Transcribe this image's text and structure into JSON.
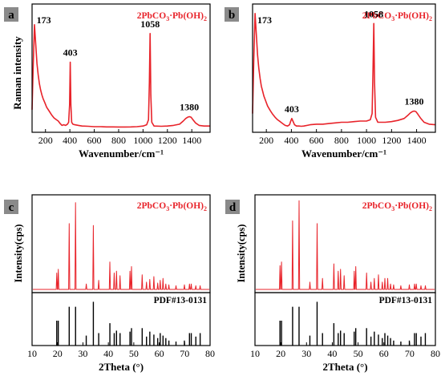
{
  "chart_data": [
    {
      "type": "line",
      "panel_label": "a",
      "title": "2PbCO3·Pb(OH)2",
      "xlabel": "Wavenumber/cm⁻¹",
      "ylabel": "Raman intensity",
      "xlim": [
        90,
        1550
      ],
      "xticks": [
        200,
        400,
        600,
        800,
        1000,
        1200,
        1400
      ],
      "series": [
        {
          "color": "#e8232a",
          "x": [
            90,
            100,
            110,
            120,
            130,
            140,
            150,
            160,
            170,
            180,
            195,
            210,
            230,
            250,
            270,
            290,
            305,
            320,
            335,
            350,
            365,
            380,
            390,
            398,
            403,
            408,
            415,
            425,
            440,
            470,
            500,
            550,
            600,
            650,
            700,
            750,
            800,
            850,
            900,
            950,
            1000,
            1030,
            1045,
            1052,
            1058,
            1064,
            1072,
            1090,
            1150,
            1200,
            1250,
            1300,
            1330,
            1350,
            1365,
            1380,
            1395,
            1410,
            1430,
            1460,
            1500,
            1550
          ],
          "y": [
            0.18,
            0.55,
            0.86,
            0.7,
            0.55,
            0.46,
            0.39,
            0.34,
            0.3,
            0.27,
            0.235,
            0.2,
            0.17,
            0.14,
            0.115,
            0.1,
            0.09,
            0.07,
            0.055,
            0.06,
            0.055,
            0.065,
            0.08,
            0.22,
            0.56,
            0.22,
            0.08,
            0.065,
            0.06,
            0.055,
            0.05,
            0.048,
            0.045,
            0.045,
            0.043,
            0.043,
            0.042,
            0.042,
            0.043,
            0.045,
            0.05,
            0.06,
            0.1,
            0.4,
            0.79,
            0.3,
            0.08,
            0.05,
            0.048,
            0.05,
            0.055,
            0.065,
            0.09,
            0.11,
            0.12,
            0.125,
            0.12,
            0.1,
            0.075,
            0.055,
            0.05,
            0.05
          ]
        }
      ],
      "annotations": [
        {
          "text": "173",
          "x": 173
        },
        {
          "text": "403",
          "x": 403
        },
        {
          "text": "1058",
          "x": 1058
        },
        {
          "text": "1380",
          "x": 1380
        }
      ]
    },
    {
      "type": "line",
      "panel_label": "b",
      "title": "2PbCO3·Pb(OH)2",
      "xlabel": "Wavenumber/cm⁻¹",
      "ylabel": "",
      "xlim": [
        90,
        1550
      ],
      "xticks": [
        200,
        400,
        600,
        800,
        1000,
        1200,
        1400
      ],
      "series": [
        {
          "color": "#e8232a",
          "x": [
            90,
            100,
            110,
            120,
            130,
            140,
            150,
            160,
            170,
            180,
            195,
            210,
            230,
            250,
            270,
            290,
            310,
            330,
            350,
            370,
            385,
            395,
            403,
            412,
            425,
            440,
            460,
            480,
            500,
            550,
            600,
            650,
            700,
            750,
            800,
            850,
            900,
            950,
            1000,
            1030,
            1045,
            1052,
            1058,
            1064,
            1072,
            1090,
            1150,
            1200,
            1250,
            1300,
            1330,
            1350,
            1365,
            1380,
            1395,
            1410,
            1430,
            1460,
            1500,
            1550
          ],
          "y": [
            0.15,
            0.6,
            0.95,
            0.78,
            0.62,
            0.51,
            0.43,
            0.37,
            0.33,
            0.29,
            0.25,
            0.21,
            0.175,
            0.145,
            0.12,
            0.1,
            0.085,
            0.07,
            0.055,
            0.05,
            0.06,
            0.09,
            0.11,
            0.09,
            0.06,
            0.05,
            0.05,
            0.048,
            0.05,
            0.06,
            0.065,
            0.065,
            0.07,
            0.075,
            0.08,
            0.08,
            0.085,
            0.09,
            0.09,
            0.1,
            0.15,
            0.5,
            0.87,
            0.4,
            0.12,
            0.08,
            0.08,
            0.085,
            0.095,
            0.11,
            0.135,
            0.155,
            0.165,
            0.17,
            0.165,
            0.145,
            0.115,
            0.08,
            0.065,
            0.06
          ]
        }
      ],
      "annotations": [
        {
          "text": "173",
          "x": 173
        },
        {
          "text": "403",
          "x": 403
        },
        {
          "text": "1058",
          "x": 1058
        },
        {
          "text": "1380",
          "x": 1380
        }
      ]
    },
    {
      "type": "bar",
      "panel_label": "c",
      "title": "2PbCO3·Pb(OH)2",
      "xlabel": "2Theta (°)",
      "ylabel": "Intensity(cps)",
      "xlim": [
        10,
        80
      ],
      "xticks": [
        10,
        20,
        30,
        40,
        50,
        60,
        70,
        80
      ],
      "xrd": {
        "color": "#e8232a",
        "x": [
          19.7,
          20.3,
          24.6,
          27.1,
          31.3,
          34.1,
          36.2,
          40.6,
          42.3,
          43.2,
          44.6,
          48.5,
          49.1,
          53.3,
          55.0,
          56.3,
          57.9,
          59.4,
          60.4,
          61.5,
          62.6,
          63.8,
          66.6,
          69.9,
          71.9,
          72.6,
          74.4,
          76.1
        ],
        "y": [
          0.18,
          0.22,
          0.72,
          0.95,
          0.06,
          0.7,
          0.1,
          0.3,
          0.18,
          0.2,
          0.15,
          0.2,
          0.25,
          0.16,
          0.08,
          0.11,
          0.14,
          0.07,
          0.1,
          0.12,
          0.06,
          0.05,
          0.04,
          0.05,
          0.06,
          0.06,
          0.04,
          0.04
        ]
      },
      "reference": {
        "label": "PDF#13-0131",
        "x": [
          19.7,
          20.3,
          24.6,
          27.1,
          31.3,
          34.1,
          36.2,
          40.6,
          42.3,
          43.2,
          44.6,
          48.5,
          49.1,
          53.3,
          55.0,
          56.3,
          57.9,
          59.4,
          60.4,
          61.5,
          62.6,
          63.8,
          66.6,
          69.9,
          71.9,
          72.6,
          74.4,
          76.1
        ],
        "y": [
          0.5,
          0.5,
          0.78,
          0.78,
          0.2,
          0.88,
          0.25,
          0.45,
          0.25,
          0.3,
          0.25,
          0.28,
          0.35,
          0.35,
          0.18,
          0.28,
          0.22,
          0.15,
          0.25,
          0.2,
          0.15,
          0.1,
          0.08,
          0.1,
          0.25,
          0.25,
          0.18,
          0.25
        ]
      }
    },
    {
      "type": "bar",
      "panel_label": "d",
      "title": "2PbCO3·Pb(OH)2",
      "xlabel": "2Theta (°)",
      "ylabel": "Intensity(cps)",
      "xlim": [
        10,
        80
      ],
      "xticks": [
        10,
        20,
        30,
        40,
        50,
        60,
        70,
        80
      ],
      "xrd": {
        "color": "#e8232a",
        "x": [
          19.7,
          20.3,
          24.6,
          27.1,
          31.3,
          34.1,
          36.2,
          40.6,
          42.3,
          43.2,
          44.6,
          48.5,
          49.1,
          53.3,
          55.0,
          56.3,
          57.9,
          59.4,
          60.4,
          61.5,
          62.6,
          63.8,
          66.6,
          69.9,
          71.9,
          72.6,
          74.4,
          76.1
        ],
        "y": [
          0.26,
          0.3,
          0.75,
          0.97,
          0.08,
          0.72,
          0.12,
          0.28,
          0.2,
          0.22,
          0.15,
          0.2,
          0.25,
          0.18,
          0.08,
          0.12,
          0.16,
          0.08,
          0.12,
          0.12,
          0.06,
          0.05,
          0.04,
          0.05,
          0.06,
          0.06,
          0.04,
          0.04
        ]
      },
      "reference": {
        "label": "PDF#13-0131",
        "x": [
          19.7,
          20.3,
          24.6,
          27.1,
          31.3,
          34.1,
          36.2,
          40.6,
          42.3,
          43.2,
          44.6,
          48.5,
          49.1,
          53.3,
          55.0,
          56.3,
          57.9,
          59.4,
          60.4,
          61.5,
          62.6,
          63.8,
          66.6,
          69.9,
          71.9,
          72.6,
          74.4,
          76.1
        ],
        "y": [
          0.5,
          0.5,
          0.78,
          0.78,
          0.2,
          0.88,
          0.25,
          0.45,
          0.25,
          0.3,
          0.25,
          0.28,
          0.35,
          0.35,
          0.18,
          0.28,
          0.22,
          0.15,
          0.25,
          0.2,
          0.15,
          0.1,
          0.08,
          0.1,
          0.25,
          0.25,
          0.18,
          0.25
        ]
      }
    }
  ]
}
